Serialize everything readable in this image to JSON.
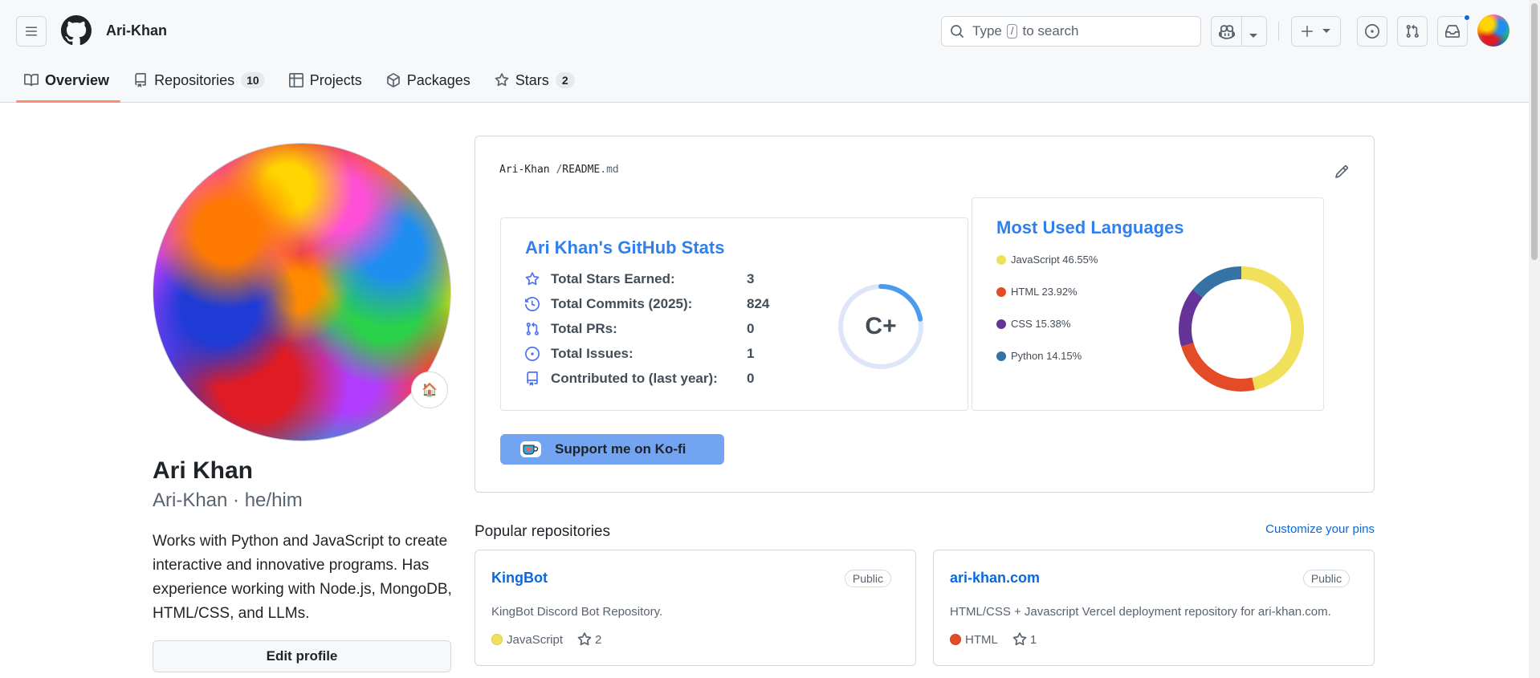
{
  "header": {
    "owner": "Ari-Khan",
    "search_prefix": "Type",
    "search_key": "/",
    "search_suffix": "to search"
  },
  "tabs": [
    {
      "label": "Overview",
      "count": null
    },
    {
      "label": "Repositories",
      "count": "10"
    },
    {
      "label": "Projects",
      "count": null
    },
    {
      "label": "Packages",
      "count": null
    },
    {
      "label": "Stars",
      "count": "2"
    }
  ],
  "profile": {
    "name": "Ari Khan",
    "login_line": "Ari-Khan · he/him",
    "status_emoji": "🏠",
    "bio": "Works with Python and JavaScript to create interactive and innovative programs. Has experience working with Node.js, MongoDB, HTML/CSS, and LLMs.",
    "edit_label": "Edit profile"
  },
  "readme": {
    "path_owner": "Ari-Khan",
    "path_sep": "/",
    "path_name": "README",
    "path_ext": ".md",
    "kofi_label": "Support me on Ko-fi"
  },
  "stats": {
    "title": "Ari Khan's GitHub Stats",
    "rows": [
      {
        "icon": "star-icon",
        "label": "Total Stars Earned:",
        "value": "3"
      },
      {
        "icon": "history-icon",
        "label": "Total Commits (2025):",
        "value": "824"
      },
      {
        "icon": "pull-request-icon",
        "label": "Total PRs:",
        "value": "0"
      },
      {
        "icon": "issue-icon",
        "label": "Total Issues:",
        "value": "1"
      },
      {
        "icon": "repo-icon",
        "label": "Contributed to (last year):",
        "value": "0"
      }
    ],
    "rank": "C+",
    "rank_progress": 0.22
  },
  "chart_data": {
    "type": "pie",
    "title": "Most Used Languages",
    "categories": [
      "JavaScript",
      "HTML",
      "CSS",
      "Python"
    ],
    "values": [
      46.55,
      23.92,
      15.38,
      14.15
    ],
    "labels": [
      "JavaScript 46.55%",
      "HTML 23.92%",
      "CSS 15.38%",
      "Python 14.15%"
    ],
    "colors": [
      "#f1e05a",
      "#e34c26",
      "#663399",
      "#3572A5"
    ],
    "legend": "left"
  },
  "popular": {
    "title": "Popular repositories",
    "customize": "Customize your pins",
    "repos": [
      {
        "name": "KingBot",
        "visibility": "Public",
        "description": "KingBot Discord Bot Repository.",
        "language": "JavaScript",
        "lang_color": "#f1e05a",
        "stars": "2"
      },
      {
        "name": "ari-khan.com",
        "visibility": "Public",
        "description": "HTML/CSS + Javascript Vercel deployment repository for ari-khan.com.",
        "language": "HTML",
        "lang_color": "#e34c26",
        "stars": "1"
      }
    ]
  },
  "colors": {
    "link": "#0969da",
    "stats_title": "#2f80ed",
    "tab_underline": "#fd8c73",
    "kofi_bg": "#72a4f2"
  }
}
